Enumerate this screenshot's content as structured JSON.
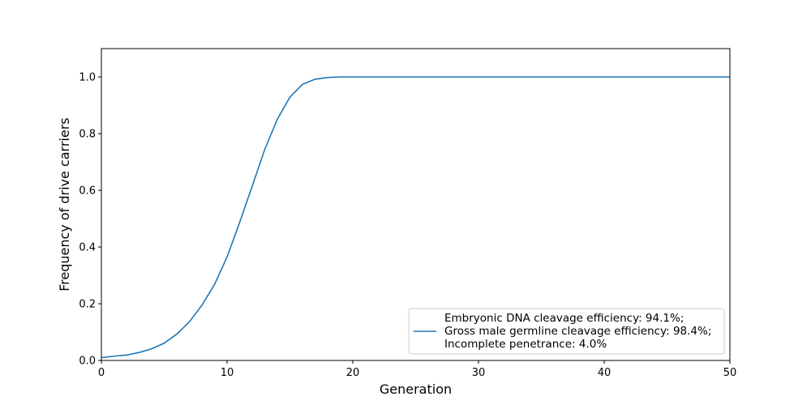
{
  "chart_data": {
    "type": "line",
    "title": "",
    "xlabel": "Generation",
    "ylabel": "Frequency of drive carriers",
    "xlim": [
      0,
      50
    ],
    "ylim": [
      0,
      1.1
    ],
    "xticks": [
      0,
      10,
      20,
      30,
      40,
      50
    ],
    "xtick_labels": [
      "0",
      "10",
      "20",
      "30",
      "40",
      "50"
    ],
    "yticks": [
      0.0,
      0.2,
      0.4,
      0.6,
      0.8,
      1.0
    ],
    "ytick_labels": [
      "0.0",
      "0.2",
      "0.4",
      "0.6",
      "0.8",
      "1.0"
    ],
    "grid": false,
    "legend_position": "lower-right",
    "series": [
      {
        "name": "",
        "legend_lines": [
          "Embryonic DNA cleavage efficiency: 94.1%;",
          "Gross male germline cleavage efficiency: 98.4%;",
          "Incomplete penetrance: 4.0%"
        ],
        "color": "#1f77b4",
        "x": [
          0,
          1,
          2,
          3,
          4,
          5,
          6,
          7,
          8,
          9,
          10,
          11,
          12,
          13,
          14,
          15,
          16,
          17,
          18,
          19,
          20,
          21,
          22,
          23,
          24,
          25,
          26,
          27,
          28,
          29,
          30,
          31,
          32,
          33,
          34,
          35,
          36,
          37,
          38,
          39,
          40,
          41,
          42,
          43,
          44,
          45,
          46,
          47,
          48,
          49,
          50
        ],
        "y": [
          0.01,
          0.015,
          0.019,
          0.028,
          0.041,
          0.061,
          0.093,
          0.136,
          0.195,
          0.268,
          0.365,
          0.487,
          0.615,
          0.745,
          0.851,
          0.929,
          0.974,
          0.992,
          0.998,
          1.0,
          1.0,
          1.0,
          1.0,
          1.0,
          1.0,
          1.0,
          1.0,
          1.0,
          1.0,
          1.0,
          1.0,
          1.0,
          1.0,
          1.0,
          1.0,
          1.0,
          1.0,
          1.0,
          1.0,
          1.0,
          1.0,
          1.0,
          1.0,
          1.0,
          1.0,
          1.0,
          1.0,
          1.0,
          1.0,
          1.0,
          1.0
        ]
      }
    ]
  }
}
